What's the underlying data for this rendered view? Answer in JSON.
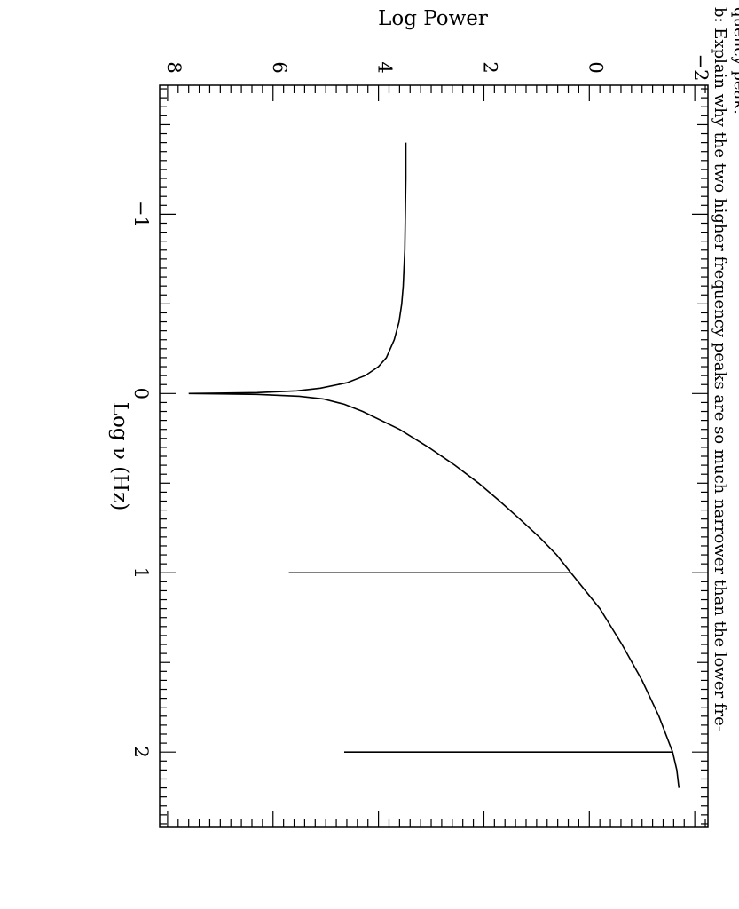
{
  "chart_data": {
    "type": "line",
    "orientation": "rotated 90 degrees clockwise",
    "xlabel": "Log ν (Hz)",
    "ylabel": "Log Power",
    "xlim": [
      -1.72,
      2.42
    ],
    "ylim": [
      -2.25,
      8.15
    ],
    "x_ticks_major": [
      "−1",
      "0",
      "1",
      "2"
    ],
    "y_ticks_major": [
      "−2",
      "0",
      "2",
      "4",
      "6",
      "8"
    ],
    "grid": false,
    "legend": "none",
    "series": [
      {
        "points": [
          [
            -1.4,
            3.48
          ],
          [
            -1.2,
            3.48
          ],
          [
            -1.0,
            3.49
          ],
          [
            -0.8,
            3.5
          ],
          [
            -0.6,
            3.53
          ],
          [
            -0.5,
            3.56
          ],
          [
            -0.4,
            3.61
          ],
          [
            -0.3,
            3.7
          ],
          [
            -0.2,
            3.85
          ],
          [
            -0.15,
            4.0
          ],
          [
            -0.1,
            4.25
          ],
          [
            -0.06,
            4.6
          ],
          [
            -0.03,
            5.1
          ],
          [
            -0.015,
            5.55
          ],
          [
            -0.005,
            6.3
          ],
          [
            0.0,
            7.6
          ],
          [
            0.005,
            6.3
          ],
          [
            0.015,
            5.5
          ],
          [
            0.03,
            5.05
          ],
          [
            0.06,
            4.65
          ],
          [
            0.1,
            4.3
          ],
          [
            0.2,
            3.6
          ],
          [
            0.3,
            3.05
          ],
          [
            0.4,
            2.55
          ],
          [
            0.5,
            2.1
          ],
          [
            0.6,
            1.7
          ],
          [
            0.7,
            1.32
          ],
          [
            0.8,
            0.95
          ],
          [
            0.9,
            0.62
          ],
          [
            1.0,
            0.35
          ],
          [
            1.2,
            -0.2
          ],
          [
            1.4,
            -0.62
          ],
          [
            1.6,
            -1.0
          ],
          [
            1.8,
            -1.32
          ],
          [
            2.0,
            -1.58
          ],
          [
            2.1,
            -1.66
          ],
          [
            2.2,
            -1.7
          ]
        ]
      }
    ],
    "spikes": [
      {
        "x": 1.0,
        "from": 0.35,
        "to": 5.7
      },
      {
        "x": 2.0,
        "from": -1.58,
        "to": 4.65
      }
    ]
  },
  "caption": {
    "line1": "b: Explain why the two higher frequency peaks are so much narrower than the lower fre-",
    "line2": "quency peak."
  }
}
